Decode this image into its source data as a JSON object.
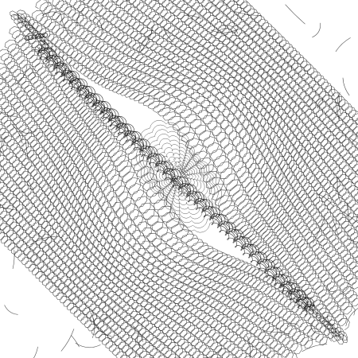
{
  "artwork": {
    "background": "#ffffff",
    "ink": "#1a1a1a",
    "ink_dense": "#0d0d0d",
    "style": "pen-plotter loop-curve field with vortex eye and diagonal crease",
    "text_content": []
  }
}
